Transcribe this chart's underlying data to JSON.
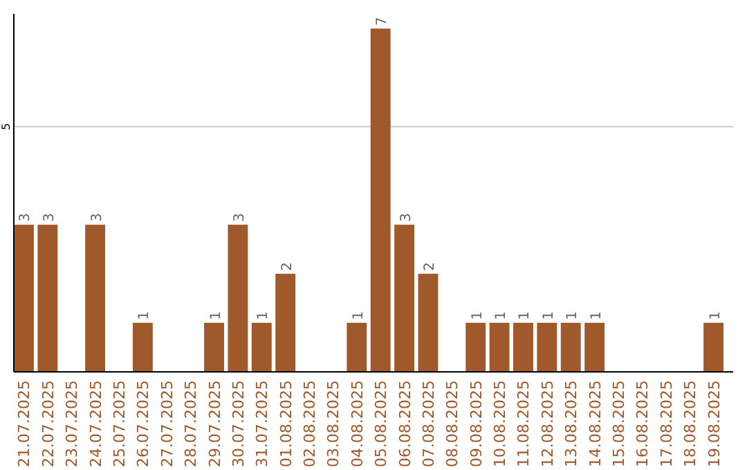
{
  "chart_data": {
    "type": "bar",
    "categories": [
      "21.07.2025",
      "22.07.2025",
      "23.07.2025",
      "24.07.2025",
      "25.07.2025",
      "26.07.2025",
      "27.07.2025",
      "28.07.2025",
      "29.07.2025",
      "30.07.2025",
      "31.07.2025",
      "01.08.2025",
      "02.08.2025",
      "03.08.2025",
      "04.08.2025",
      "05.08.2025",
      "06.08.2025",
      "07.08.2025",
      "08.08.2025",
      "09.08.2025",
      "10.08.2025",
      "11.08.2025",
      "12.08.2025",
      "13.08.2025",
      "14.08.2025",
      "15.08.2025",
      "16.08.2025",
      "17.08.2025",
      "18.08.2025",
      "19.08.2025"
    ],
    "values": [
      3,
      3,
      0,
      3,
      0,
      1,
      0,
      0,
      1,
      3,
      1,
      2,
      0,
      0,
      1,
      7,
      3,
      2,
      0,
      1,
      1,
      1,
      1,
      1,
      1,
      0,
      0,
      0,
      0,
      1
    ],
    "value_labels": [
      "3",
      "3",
      null,
      "3",
      null,
      "1",
      null,
      null,
      "1",
      "3",
      "1",
      "2",
      null,
      null,
      "1",
      "7",
      "3",
      "2",
      null,
      "1",
      "1",
      "1",
      "1",
      "1",
      "1",
      null,
      null,
      null,
      null,
      "1"
    ],
    "color": "#a0592a",
    "ylim": [
      0,
      7.3
    ],
    "yticks": [
      5
    ],
    "grid": "y"
  }
}
